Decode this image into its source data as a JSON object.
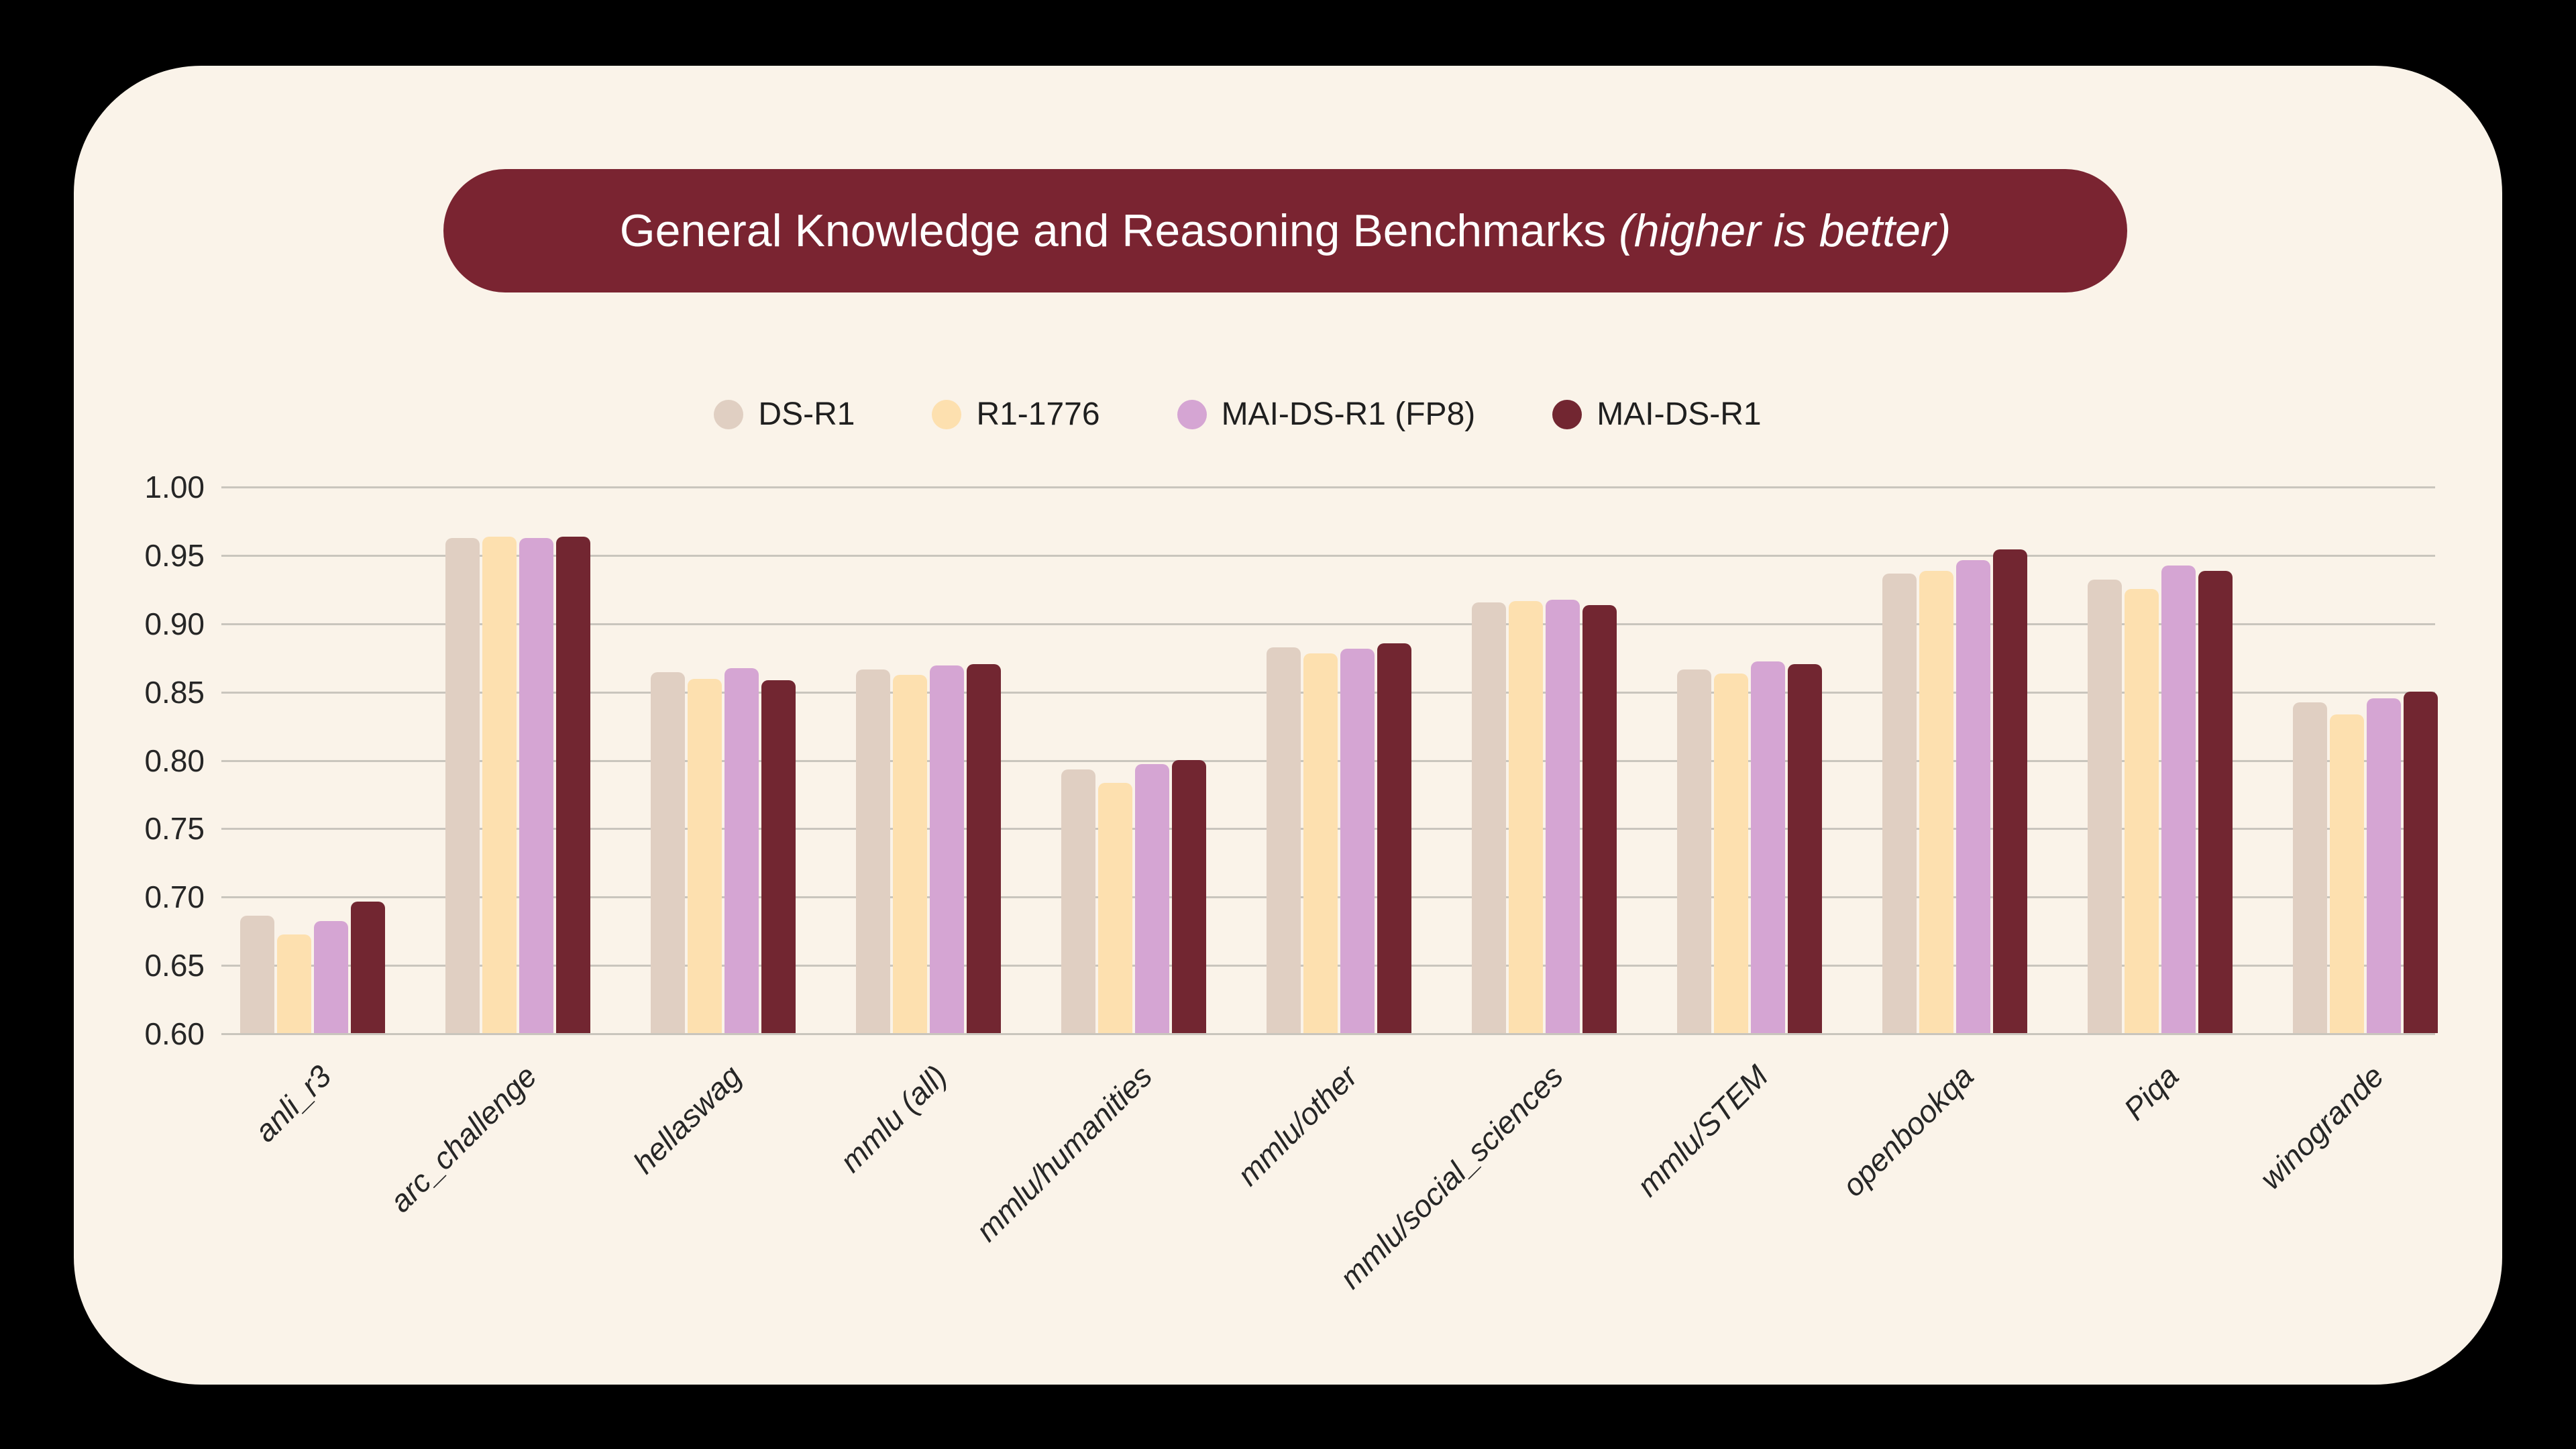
{
  "title": {
    "main": "General Knowledge and Reasoning Benchmarks ",
    "note": "(higher is better)"
  },
  "colors": {
    "page_bg": "#000000",
    "card_bg": "#faf3e9",
    "banner_bg": "#7a2431",
    "banner_text": "#ffffff",
    "gridline": "#c9c5bd",
    "axis_text": "#262626"
  },
  "chart_data": {
    "type": "bar",
    "title": "General Knowledge and Reasoning Benchmarks (higher is better)",
    "categories": [
      "anli_r3",
      "arc_challenge",
      "hellaswag",
      "mmlu (all)",
      "mmlu/humanities",
      "mmlu/other",
      "mmlu/social_sciences",
      "mmlu/STEM",
      "openbookqa",
      "Piqa",
      "winogrande"
    ],
    "series": [
      {
        "name": "DS-R1",
        "color": "#e0cfc2",
        "values": [
          0.686,
          0.962,
          0.864,
          0.866,
          0.793,
          0.882,
          0.915,
          0.866,
          0.936,
          0.932,
          0.842
        ]
      },
      {
        "name": "R1-1776",
        "color": "#fde0af",
        "values": [
          0.672,
          0.963,
          0.859,
          0.862,
          0.783,
          0.878,
          0.916,
          0.863,
          0.938,
          0.925,
          0.833
        ]
      },
      {
        "name": "MAI-DS-R1 (FP8)",
        "color": "#d5a5d3",
        "values": [
          0.682,
          0.962,
          0.867,
          0.869,
          0.797,
          0.881,
          0.917,
          0.872,
          0.946,
          0.942,
          0.845
        ]
      },
      {
        "name": "MAI-DS-R1",
        "color": "#722631",
        "values": [
          0.696,
          0.963,
          0.858,
          0.87,
          0.8,
          0.885,
          0.913,
          0.87,
          0.954,
          0.938,
          0.85
        ]
      }
    ],
    "xlabel": "",
    "ylabel": "",
    "ylim": [
      0.6,
      1.0
    ],
    "yticks": [
      "1.00",
      "0.95",
      "0.90",
      "0.85",
      "0.80",
      "0.75",
      "0.70",
      "0.65",
      "0.60"
    ],
    "grid": true,
    "legend_position": "top-center"
  }
}
